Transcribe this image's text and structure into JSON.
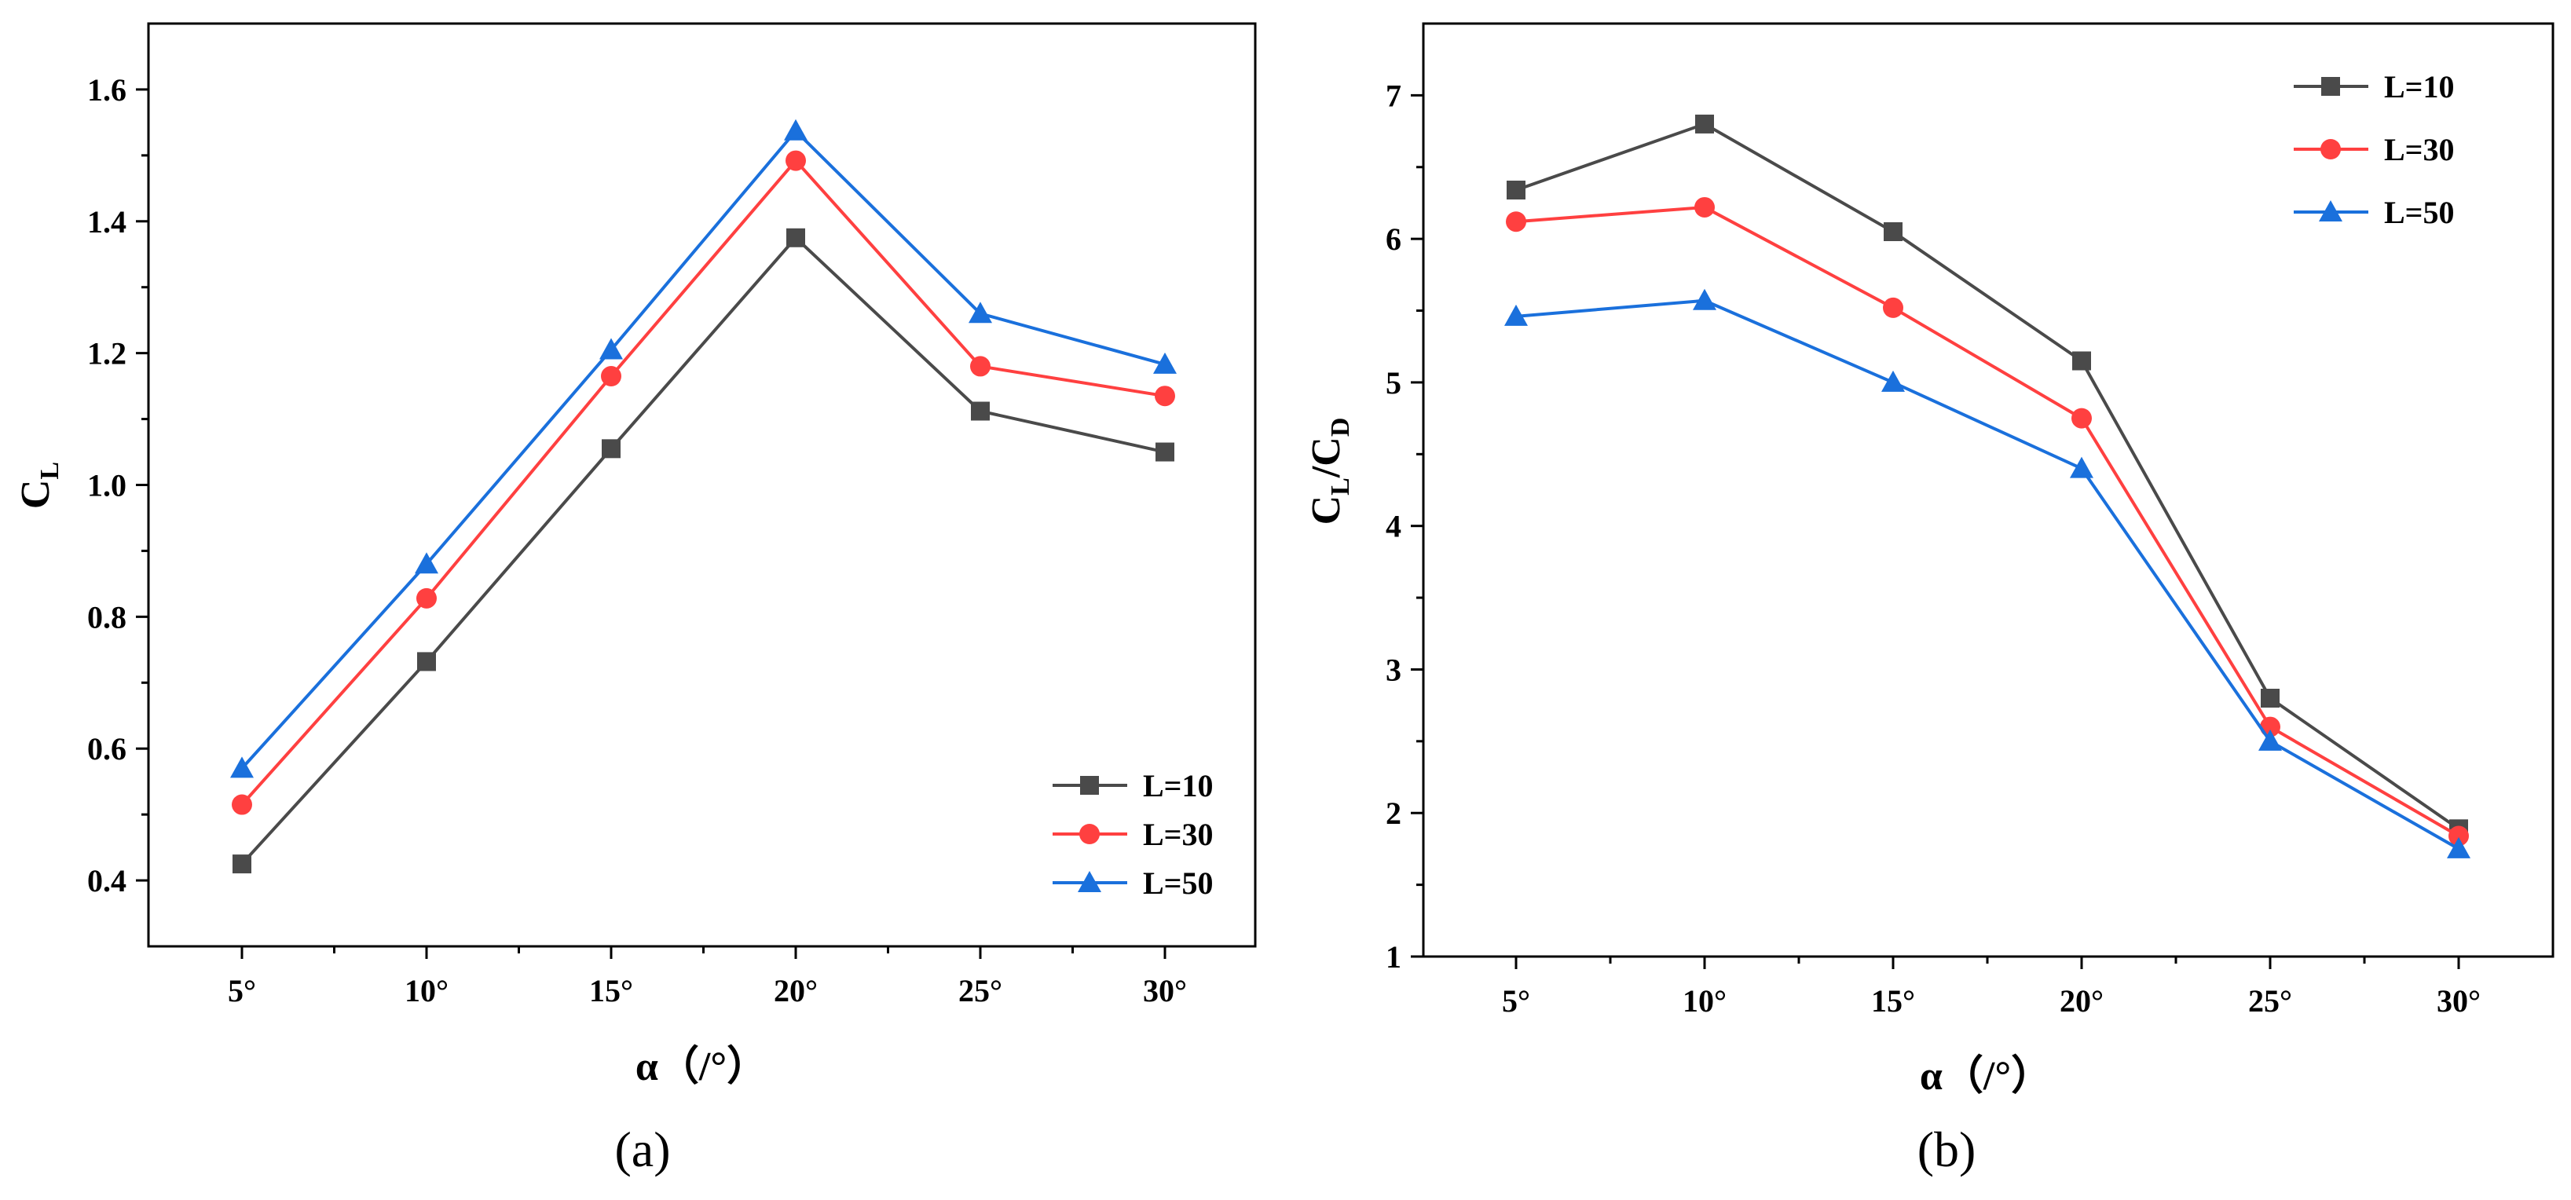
{
  "colors": {
    "L10": "#4a4a4a",
    "L30": "#ff4040",
    "L50": "#1a70dc"
  },
  "chart_data": [
    {
      "type": "line",
      "panel_label": "(a)",
      "categories": [
        "5°",
        "10°",
        "15°",
        "20°",
        "25°",
        "30°"
      ],
      "xlabel": "α（/°）",
      "ylabel_main": "C",
      "ylabel_sub": "L",
      "ylim": [
        0.3,
        1.7
      ],
      "yticks": [
        "0.4",
        "0.6",
        "0.8",
        "1.0",
        "1.2",
        "1.4",
        "1.6"
      ],
      "legend_position": "bottom-right",
      "series": [
        {
          "name": "L=10",
          "marker": "square",
          "color_key": "L10",
          "values": [
            0.425,
            0.732,
            1.055,
            1.375,
            1.112,
            1.05
          ]
        },
        {
          "name": "L=30",
          "marker": "circle",
          "color_key": "L30",
          "values": [
            0.515,
            0.828,
            1.165,
            1.492,
            1.18,
            1.135
          ]
        },
        {
          "name": "L=50",
          "marker": "triangle",
          "color_key": "L50",
          "values": [
            0.57,
            0.88,
            1.205,
            1.537,
            1.26,
            1.183
          ]
        }
      ]
    },
    {
      "type": "line",
      "panel_label": "(b)",
      "categories": [
        "5°",
        "10°",
        "15°",
        "20°",
        "25°",
        "30°"
      ],
      "xlabel": "α（/°）",
      "ylabel_main1": "C",
      "ylabel_sub1": "L",
      "ylabel_main2": "/C",
      "ylabel_sub2": "D",
      "ylim": [
        1,
        7.5
      ],
      "yticks": [
        "1",
        "2",
        "3",
        "4",
        "5",
        "6",
        "7"
      ],
      "legend_position": "top-right",
      "series": [
        {
          "name": "L=10",
          "marker": "square",
          "color_key": "L10",
          "values": [
            6.34,
            6.8,
            6.05,
            5.15,
            2.8,
            1.89
          ]
        },
        {
          "name": "L=30",
          "marker": "circle",
          "color_key": "L30",
          "values": [
            6.12,
            6.22,
            5.52,
            4.75,
            2.6,
            1.84
          ]
        },
        {
          "name": "L=50",
          "marker": "triangle",
          "color_key": "L50",
          "values": [
            5.46,
            5.57,
            5.0,
            4.4,
            2.5,
            1.75
          ]
        }
      ]
    }
  ]
}
